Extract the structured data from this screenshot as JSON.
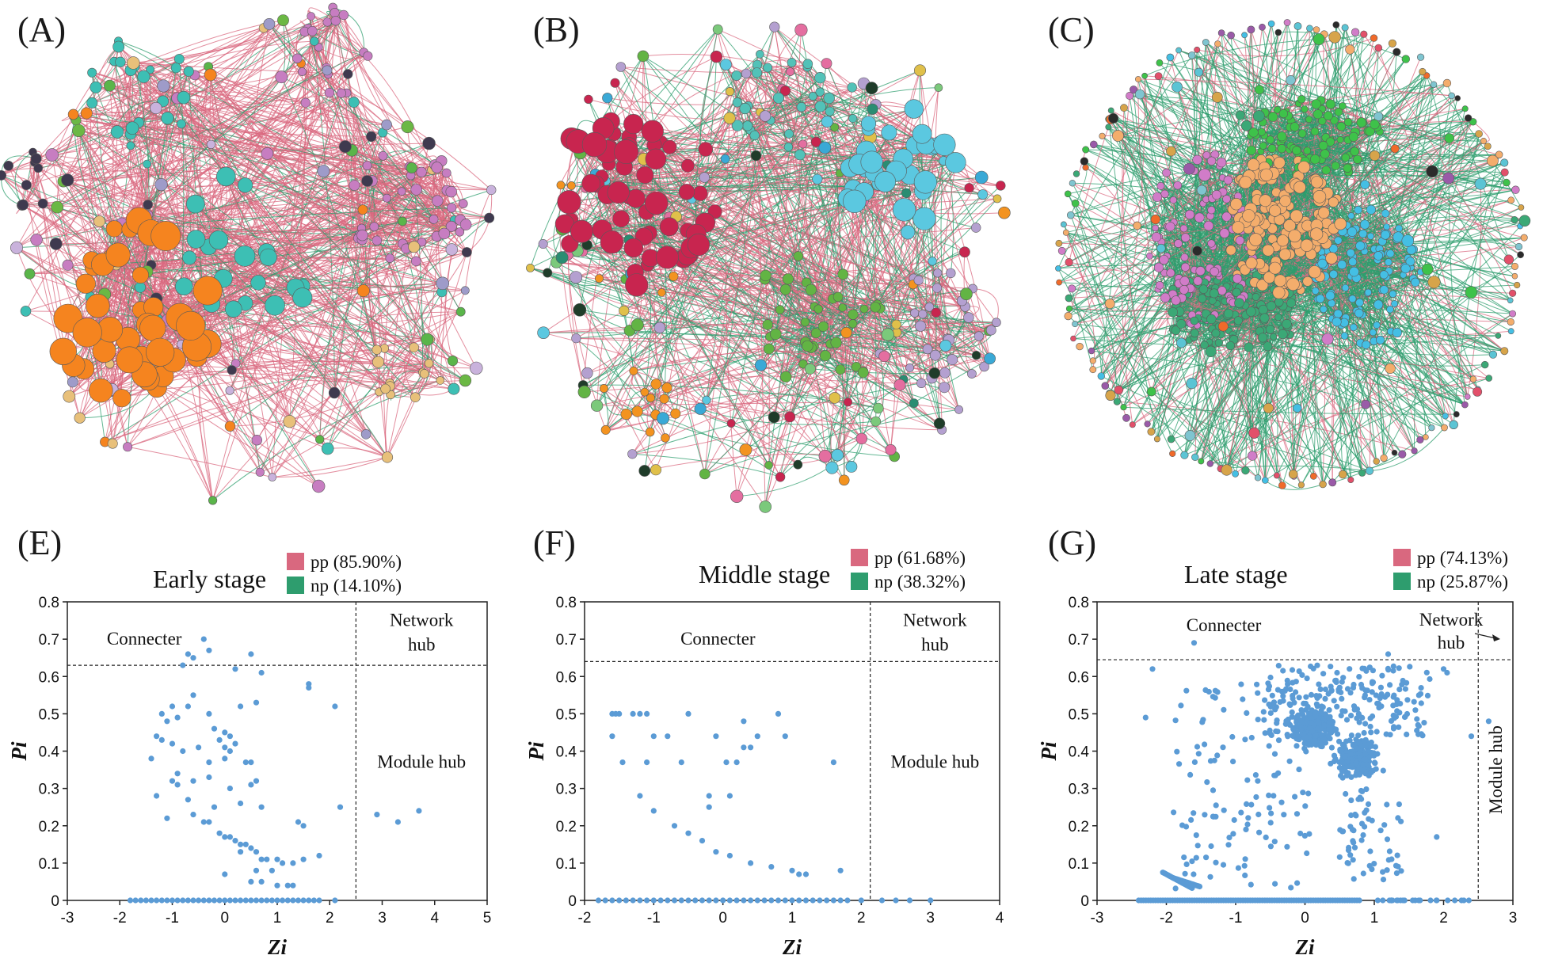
{
  "panels": {
    "A": "(A)",
    "B": "(B)",
    "C": "(C)",
    "E": "(E)",
    "F": "(F)",
    "G": "(G)"
  },
  "colors": {
    "pp": "#d9687f",
    "np": "#2e9d6e",
    "point": "#5b9bd5",
    "A_modules": [
      "#f5841f",
      "#3dbfb4",
      "#c77dc1",
      "#3f3a4f",
      "#e8c07a",
      "#6bb844",
      "#9e9bc9"
    ],
    "B_modules": [
      "#c8254f",
      "#5bc8e0",
      "#62b444",
      "#b4a0d0",
      "#f39320",
      "#2a8d72",
      "#1f3d2a",
      "#e0c04a"
    ],
    "C_modules": [
      "#f4ad6c",
      "#d17cc8",
      "#44bfe4",
      "#3ec24a",
      "#3ba876",
      "#f06a2a",
      "#5bc4d4"
    ]
  },
  "network_legend": {
    "E": {
      "pp": "pp (85.90%)",
      "np": "np (14.10%)"
    },
    "F": {
      "pp": "pp (61.68%)",
      "np": "np (38.32%)"
    },
    "G": {
      "pp": "pp (74.13%)",
      "np": "np (25.87%)"
    }
  },
  "chart_data": [
    {
      "panel": "E",
      "type": "scatter",
      "title": "Early stage",
      "xlabel": "Zi",
      "ylabel": "Pi",
      "xlim": [
        -3,
        5
      ],
      "ylim": [
        0,
        0.8
      ],
      "xticks": [
        -3,
        -2,
        -1,
        0,
        1,
        2,
        3,
        4,
        5
      ],
      "yticks": [
        0,
        0.1,
        0.2,
        0.3,
        0.4,
        0.5,
        0.6,
        0.7,
        0.8
      ],
      "thresholds": {
        "zi": 2.5,
        "pi": 0.63
      },
      "regions": {
        "connector": "Connecter",
        "network_hub": [
          "Network",
          "hub"
        ],
        "module_hub": "Module hub"
      },
      "zero_points_x": [
        -1.8,
        -1.7,
        -1.6,
        -1.5,
        -1.4,
        -1.3,
        -1.2,
        -1.1,
        -1.0,
        -0.9,
        -0.8,
        -0.7,
        -0.6,
        -0.5,
        -0.4,
        -0.3,
        -0.2,
        -0.1,
        0.0,
        0.1,
        0.2,
        0.3,
        0.4,
        0.5,
        0.6,
        0.7,
        0.8,
        0.9,
        1.0,
        1.1,
        1.2,
        1.3,
        1.4,
        1.5,
        1.6,
        1.7,
        1.8,
        2.1
      ],
      "points": [
        [
          -0.4,
          0.7
        ],
        [
          -0.3,
          0.67
        ],
        [
          -0.8,
          0.63
        ],
        [
          -0.7,
          0.66
        ],
        [
          -0.6,
          0.65
        ],
        [
          0.5,
          0.66
        ],
        [
          0.2,
          0.62
        ],
        [
          0.7,
          0.61
        ],
        [
          -0.6,
          0.55
        ],
        [
          -0.7,
          0.52
        ],
        [
          -1.2,
          0.5
        ],
        [
          -1.1,
          0.48
        ],
        [
          -1.0,
          0.52
        ],
        [
          -0.9,
          0.49
        ],
        [
          -0.3,
          0.5
        ],
        [
          0.3,
          0.52
        ],
        [
          0.6,
          0.53
        ],
        [
          1.6,
          0.58
        ],
        [
          1.6,
          0.57
        ],
        [
          2.1,
          0.52
        ],
        [
          -0.2,
          0.46
        ],
        [
          -0.1,
          0.43
        ],
        [
          0.0,
          0.45
        ],
        [
          0.1,
          0.44
        ],
        [
          -1.3,
          0.44
        ],
        [
          -1.2,
          0.43
        ],
        [
          -1.0,
          0.42
        ],
        [
          -0.8,
          0.4
        ],
        [
          -0.5,
          0.41
        ],
        [
          0.0,
          0.41
        ],
        [
          0.2,
          0.42
        ],
        [
          0.1,
          0.4
        ],
        [
          -1.4,
          0.38
        ],
        [
          -0.3,
          0.37
        ],
        [
          0.0,
          0.38
        ],
        [
          0.4,
          0.37
        ],
        [
          0.5,
          0.37
        ],
        [
          -0.9,
          0.34
        ],
        [
          -1.0,
          0.32
        ],
        [
          -0.9,
          0.31
        ],
        [
          -0.6,
          0.32
        ],
        [
          -0.3,
          0.33
        ],
        [
          0.1,
          0.3
        ],
        [
          0.5,
          0.31
        ],
        [
          0.6,
          0.32
        ],
        [
          -1.3,
          0.28
        ],
        [
          -0.7,
          0.27
        ],
        [
          -0.2,
          0.25
        ],
        [
          0.3,
          0.26
        ],
        [
          0.7,
          0.25
        ],
        [
          -0.6,
          0.23
        ],
        [
          -1.1,
          0.22
        ],
        [
          -0.4,
          0.21
        ],
        [
          -0.3,
          0.21
        ],
        [
          1.4,
          0.21
        ],
        [
          1.5,
          0.2
        ],
        [
          2.2,
          0.25
        ],
        [
          -0.1,
          0.18
        ],
        [
          0.0,
          0.17
        ],
        [
          0.1,
          0.17
        ],
        [
          0.2,
          0.16
        ],
        [
          0.3,
          0.15
        ],
        [
          0.4,
          0.15
        ],
        [
          0.5,
          0.14
        ],
        [
          0.6,
          0.13
        ],
        [
          0.7,
          0.11
        ],
        [
          0.8,
          0.11
        ],
        [
          1.0,
          0.11
        ],
        [
          1.1,
          0.1
        ],
        [
          1.3,
          0.1
        ],
        [
          1.5,
          0.11
        ],
        [
          1.8,
          0.12
        ],
        [
          0.3,
          0.13
        ],
        [
          0.6,
          0.08
        ],
        [
          0.9,
          0.08
        ],
        [
          0.0,
          0.07
        ],
        [
          0.7,
          0.05
        ],
        [
          1.0,
          0.04
        ],
        [
          1.3,
          0.04
        ],
        [
          1.2,
          0.04
        ],
        [
          0.5,
          0.05
        ],
        [
          2.9,
          0.23
        ],
        [
          3.3,
          0.21
        ],
        [
          3.7,
          0.24
        ]
      ]
    },
    {
      "panel": "F",
      "type": "scatter",
      "title": "Middle stage",
      "xlabel": "Zi",
      "ylabel": "Pi",
      "xlim": [
        -2,
        4
      ],
      "ylim": [
        0,
        0.8
      ],
      "xticks": [
        -2,
        -1,
        0,
        1,
        2,
        3,
        4
      ],
      "yticks": [
        0,
        0.1,
        0.2,
        0.3,
        0.4,
        0.5,
        0.6,
        0.7,
        0.8
      ],
      "thresholds": {
        "zi": 2.13,
        "pi": 0.64
      },
      "regions": {
        "connector": "Connecter",
        "network_hub": [
          "Network",
          "hub"
        ],
        "module_hub": "Module hub"
      },
      "zero_points_x": [
        -1.8,
        -1.7,
        -1.6,
        -1.5,
        -1.4,
        -1.3,
        -1.2,
        -1.1,
        -1.0,
        -0.9,
        -0.8,
        -0.7,
        -0.6,
        -0.5,
        -0.4,
        -0.3,
        -0.2,
        -0.1,
        0.0,
        0.1,
        0.2,
        0.3,
        0.4,
        0.5,
        0.6,
        0.7,
        0.8,
        0.9,
        1.0,
        1.1,
        1.2,
        1.3,
        1.4,
        1.5,
        1.6,
        1.7,
        1.8,
        2.0,
        2.3,
        2.5,
        2.7,
        3.0
      ],
      "points": [
        [
          -1.6,
          0.5
        ],
        [
          -1.55,
          0.5
        ],
        [
          -1.5,
          0.5
        ],
        [
          -1.3,
          0.5
        ],
        [
          -1.2,
          0.5
        ],
        [
          -1.1,
          0.5
        ],
        [
          -0.5,
          0.5
        ],
        [
          0.8,
          0.5
        ],
        [
          -1.6,
          0.44
        ],
        [
          -1.0,
          0.44
        ],
        [
          -0.8,
          0.44
        ],
        [
          -0.1,
          0.44
        ],
        [
          0.5,
          0.44
        ],
        [
          0.9,
          0.44
        ],
        [
          0.3,
          0.48
        ],
        [
          0.3,
          0.41
        ],
        [
          0.4,
          0.41
        ],
        [
          -1.45,
          0.37
        ],
        [
          -1.1,
          0.37
        ],
        [
          -0.6,
          0.37
        ],
        [
          0.05,
          0.37
        ],
        [
          0.2,
          0.37
        ],
        [
          1.6,
          0.37
        ],
        [
          -1.2,
          0.28
        ],
        [
          -0.2,
          0.28
        ],
        [
          0.1,
          0.28
        ],
        [
          -0.2,
          0.25
        ],
        [
          -1.0,
          0.24
        ],
        [
          -0.7,
          0.2
        ],
        [
          -0.5,
          0.18
        ],
        [
          -0.3,
          0.16
        ],
        [
          -0.1,
          0.13
        ],
        [
          0.1,
          0.12
        ],
        [
          0.4,
          0.1
        ],
        [
          0.7,
          0.09
        ],
        [
          1.0,
          0.08
        ],
        [
          1.1,
          0.07
        ],
        [
          1.2,
          0.07
        ],
        [
          1.7,
          0.08
        ]
      ]
    },
    {
      "panel": "G",
      "type": "scatter",
      "title": "Late stage",
      "xlabel": "Zi",
      "ylabel": "Pi",
      "xlim": [
        -3,
        3
      ],
      "ylim": [
        0,
        0.8
      ],
      "xticks": [
        -3,
        -2,
        -1,
        0,
        1,
        2,
        3
      ],
      "yticks": [
        0,
        0.1,
        0.2,
        0.3,
        0.4,
        0.5,
        0.6,
        0.7,
        0.8
      ],
      "thresholds": {
        "zi": 2.5,
        "pi": 0.645
      },
      "regions": {
        "connector": "Connecter",
        "network_hub": [
          "Network",
          "hub"
        ],
        "module_hub": "Module hub"
      },
      "outliers": [
        [
          -1.6,
          0.69
        ],
        [
          -2.2,
          0.62
        ],
        [
          2.0,
          0.62
        ],
        [
          2.05,
          0.61
        ],
        [
          2.65,
          0.48
        ],
        [
          2.4,
          0.44
        ],
        [
          1.9,
          0.17
        ],
        [
          -2.3,
          0.49
        ],
        [
          1.2,
          0.66
        ]
      ]
    }
  ]
}
